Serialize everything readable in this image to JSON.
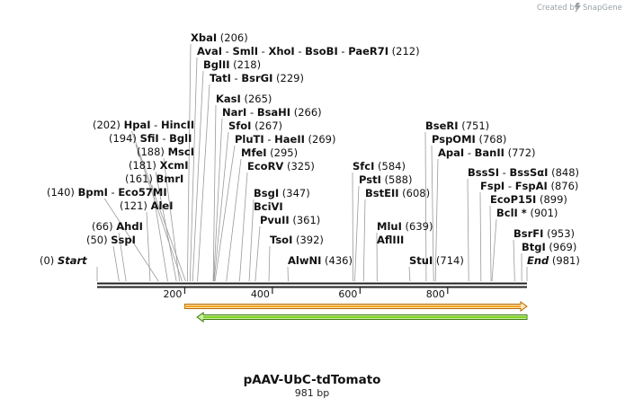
{
  "branding": {
    "created_by": "Created by",
    "app_name": "SnapGene"
  },
  "map": {
    "name": "pAAV-UbC-tdTomato",
    "length_label": "981 bp",
    "length": 981,
    "ticks": [
      200,
      400,
      600,
      800
    ]
  },
  "sites": [
    {
      "id": "start",
      "pos": 0,
      "parts": [
        "Start"
      ],
      "pos_label": "(0)",
      "italic": true
    },
    {
      "id": "sspi",
      "pos": 50,
      "parts": [
        "SspI"
      ],
      "pos_label": "(50)"
    },
    {
      "id": "ahdi",
      "pos": 66,
      "parts": [
        "AhdI"
      ],
      "pos_label": "(66)"
    },
    {
      "id": "alei",
      "pos": 121,
      "parts": [
        "AleI"
      ],
      "pos_label": "(121)"
    },
    {
      "id": "bpmi",
      "pos": 140,
      "parts": [
        "BpmI",
        "Eco57MI"
      ],
      "pos_label": "(140)"
    },
    {
      "id": "bmri",
      "pos": 161,
      "parts": [
        "BmrI"
      ],
      "pos_label": "(161)"
    },
    {
      "id": "xcmi",
      "pos": 181,
      "parts": [
        "XcmI"
      ],
      "pos_label": "(181)"
    },
    {
      "id": "msci",
      "pos": 188,
      "parts": [
        "MscI"
      ],
      "pos_label": "(188)"
    },
    {
      "id": "sfii",
      "pos": 194,
      "parts": [
        "SfiI",
        "BglI"
      ],
      "pos_label": "(194)"
    },
    {
      "id": "hpai",
      "pos": 202,
      "parts": [
        "HpaI",
        "HincII"
      ],
      "pos_label": "(202)"
    },
    {
      "id": "xbai",
      "pos": 206,
      "parts": [
        "XbaI"
      ],
      "pos_label": "(206)"
    },
    {
      "id": "avai",
      "pos": 212,
      "parts": [
        "AvaI",
        "SmlI",
        "XhoI",
        "BsoBI",
        "PaeR7I"
      ],
      "pos_label": "(212)"
    },
    {
      "id": "bglii",
      "pos": 218,
      "parts": [
        "BglII"
      ],
      "pos_label": "(218)"
    },
    {
      "id": "tati",
      "pos": 229,
      "parts": [
        "TatI",
        "BsrGI"
      ],
      "pos_label": "(229)"
    },
    {
      "id": "kasi",
      "pos": 265,
      "parts": [
        "KasI"
      ],
      "pos_label": "(265)"
    },
    {
      "id": "nari",
      "pos": 266,
      "parts": [
        "NarI",
        "BsaHI"
      ],
      "pos_label": "(266)"
    },
    {
      "id": "sfoi",
      "pos": 267,
      "parts": [
        "SfoI"
      ],
      "pos_label": "(267)"
    },
    {
      "id": "pluti",
      "pos": 269,
      "parts": [
        "PluTI",
        "HaeII"
      ],
      "pos_label": "(269)"
    },
    {
      "id": "mfei",
      "pos": 295,
      "parts": [
        "MfeI"
      ],
      "pos_label": "(295)"
    },
    {
      "id": "ecorv",
      "pos": 325,
      "parts": [
        "EcoRV"
      ],
      "pos_label": "(325)"
    },
    {
      "id": "bsgi",
      "pos": 347,
      "parts": [
        "BsgI"
      ],
      "pos_label": "(347)"
    },
    {
      "id": "bcivi",
      "pos": 353,
      "parts": [
        "BciVI"
      ],
      "pos_label": ""
    },
    {
      "id": "pvuii",
      "pos": 361,
      "parts": [
        "PvuII"
      ],
      "pos_label": "(361)"
    },
    {
      "id": "tsoi",
      "pos": 392,
      "parts": [
        "TsoI"
      ],
      "pos_label": "(392)"
    },
    {
      "id": "alwni",
      "pos": 436,
      "parts": [
        "AlwNI"
      ],
      "pos_label": "(436)"
    },
    {
      "id": "sfci",
      "pos": 584,
      "parts": [
        "SfcI"
      ],
      "pos_label": "(584)"
    },
    {
      "id": "psti",
      "pos": 588,
      "parts": [
        "PstI"
      ],
      "pos_label": "(588)"
    },
    {
      "id": "bsteii",
      "pos": 608,
      "parts": [
        "BstEII"
      ],
      "pos_label": "(608)"
    },
    {
      "id": "mlui",
      "pos": 639,
      "parts": [
        "MluI"
      ],
      "pos_label": "(639)"
    },
    {
      "id": "aflIII",
      "pos": 639,
      "parts": [
        "AflIII"
      ],
      "pos_label": ""
    },
    {
      "id": "stui",
      "pos": 714,
      "parts": [
        "StuI"
      ],
      "pos_label": "(714)"
    },
    {
      "id": "bseri",
      "pos": 751,
      "parts": [
        "BseRI"
      ],
      "pos_label": "(751)"
    },
    {
      "id": "psp",
      "pos": 768,
      "parts": [
        "PspOMI"
      ],
      "pos_label": "(768)"
    },
    {
      "id": "apai",
      "pos": 772,
      "parts": [
        "ApaI",
        "BanII"
      ],
      "pos_label": "(772)"
    },
    {
      "id": "bsssi",
      "pos": 848,
      "parts": [
        "BssSI",
        "BssSαI"
      ],
      "pos_label": "(848)"
    },
    {
      "id": "fspi",
      "pos": 876,
      "parts": [
        "FspI",
        "FspAI"
      ],
      "pos_label": "(876)"
    },
    {
      "id": "ecop",
      "pos": 899,
      "parts": [
        "EcoP15I"
      ],
      "pos_label": "(899)"
    },
    {
      "id": "bcli",
      "pos": 901,
      "parts": [
        "BclI *"
      ],
      "pos_label": "(901)"
    },
    {
      "id": "bsrfi",
      "pos": 953,
      "parts": [
        "BsrFI"
      ],
      "pos_label": "(953)"
    },
    {
      "id": "btgi",
      "pos": 969,
      "parts": [
        "BtgI"
      ],
      "pos_label": "(969)"
    },
    {
      "id": "end",
      "pos": 981,
      "parts": [
        "End"
      ],
      "pos_label": "(981)",
      "italic": true
    }
  ],
  "features": [
    {
      "id": "feature-orange",
      "start": 200,
      "end": 981,
      "direction": "forward",
      "color": "#f5a623",
      "stroke": "#b36b00",
      "fill_light": "#fde2b8"
    },
    {
      "id": "feature-green",
      "start": 228,
      "end": 981,
      "direction": "reverse",
      "color": "#7ed321",
      "stroke": "#3d7a0b",
      "fill_light": "#c9f0a4"
    }
  ],
  "colors": {
    "line": "#888888",
    "backbone": "#222222",
    "brand": "#9aa0a6"
  }
}
